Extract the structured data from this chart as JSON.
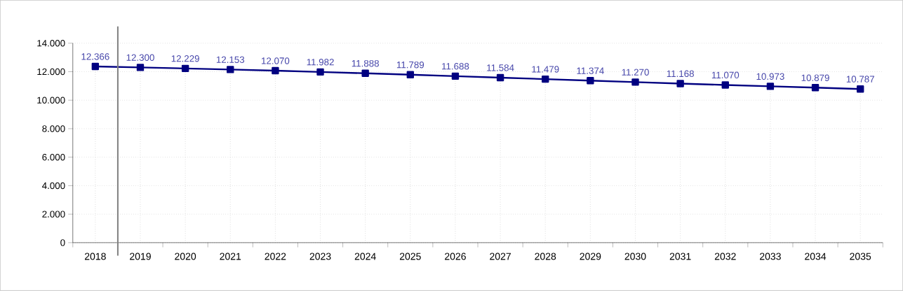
{
  "chart_data": {
    "type": "line",
    "x": [
      2018,
      2019,
      2020,
      2021,
      2022,
      2023,
      2024,
      2025,
      2026,
      2027,
      2028,
      2029,
      2030,
      2031,
      2032,
      2033,
      2034,
      2035
    ],
    "series": [
      {
        "color": "#000080",
        "values": [
          12366,
          12300,
          12229,
          12153,
          12070,
          11982,
          11888,
          11789,
          11688,
          11584,
          11479,
          11374,
          11270,
          11168,
          11070,
          10973,
          10879,
          10787
        ],
        "value_labels": [
          "12.366",
          "12.300",
          "12.229",
          "12.153",
          "12.070",
          "11.982",
          "11.888",
          "11.789",
          "11.688",
          "11.584",
          "11.479",
          "11.374",
          "11.270",
          "11.168",
          "11.070",
          "10.973",
          "10.879",
          "10.787"
        ]
      }
    ],
    "xlim": [
      2017.5,
      2035.5
    ],
    "xticks": [
      2018,
      2019,
      2020,
      2021,
      2022,
      2023,
      2024,
      2025,
      2026,
      2027,
      2028,
      2029,
      2030,
      2031,
      2032,
      2033,
      2034,
      2035
    ],
    "ylim": [
      0,
      14000
    ],
    "yticks": [
      0,
      {
        "value": 2000,
        "label": "2.000"
      },
      {
        "value": 4000,
        "label": "4.000"
      },
      {
        "value": 6000,
        "label": "6.000"
      },
      {
        "value": 8000,
        "label": "8.000"
      },
      {
        "value": 10000,
        "label": "10.000"
      },
      {
        "value": 12000,
        "label": "12.000"
      },
      {
        "value": 14000,
        "label": "14.000"
      }
    ],
    "ref_lines": [
      {
        "axis": "x",
        "value": 2018.5,
        "color": "#808080"
      }
    ],
    "grid": true,
    "marker": "square",
    "line_style": "solid"
  }
}
